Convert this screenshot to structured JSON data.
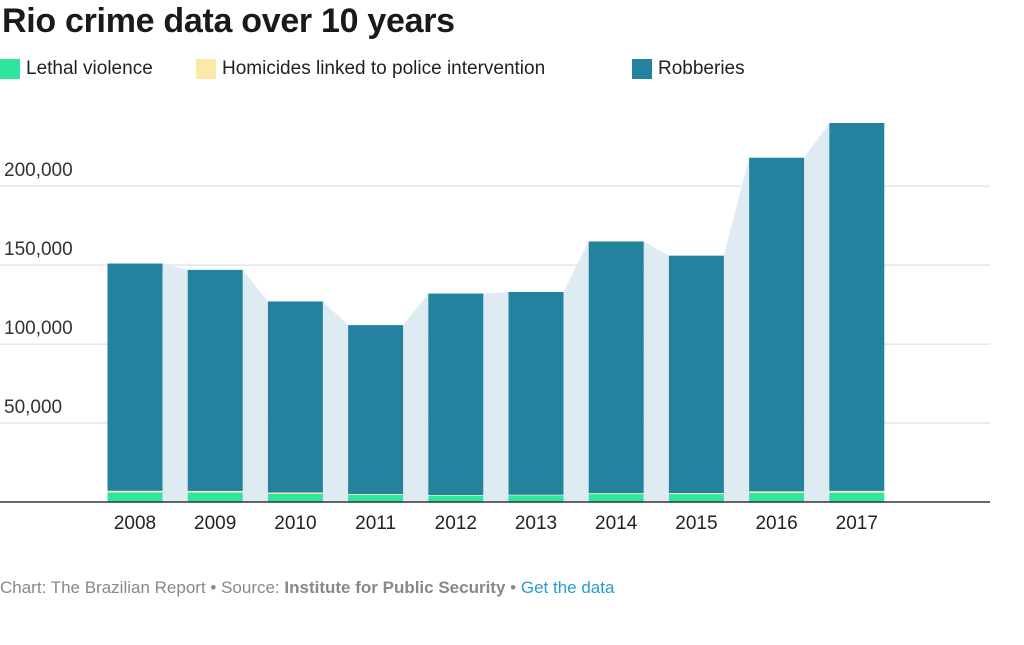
{
  "title": "Rio crime data over 10 years",
  "legend": [
    {
      "label": "Lethal violence",
      "color": "#2ee6a0"
    },
    {
      "label": "Homicides linked to police intervention",
      "color": "#fde9a6"
    },
    {
      "label": "Robberies",
      "color": "#25829f"
    }
  ],
  "footer": {
    "credit": "Chart: The Brazilian Report • Source: ",
    "source": "Institute for Public Security",
    "separator": " • ",
    "link": "Get the data"
  },
  "chart_data": {
    "type": "bar",
    "stacked": true,
    "categories": [
      "2008",
      "2009",
      "2010",
      "2011",
      "2012",
      "2013",
      "2014",
      "2015",
      "2016",
      "2017"
    ],
    "series": [
      {
        "name": "Lethal violence",
        "color": "#2ee6a0",
        "values": [
          6000,
          6000,
          5200,
          4500,
          4000,
          4200,
          5000,
          5000,
          5800,
          5900
        ]
      },
      {
        "name": "Homicides linked to police intervention",
        "color": "#fde9a6",
        "values": [
          1100,
          1000,
          800,
          500,
          400,
          400,
          580,
          650,
          920,
          1120
        ]
      },
      {
        "name": "Robberies",
        "color": "#25829f",
        "values": [
          143900,
          140000,
          121000,
          107000,
          127600,
          128400,
          159400,
          150350,
          211280,
          232980
        ]
      }
    ],
    "ylim": [
      0,
      240000
    ],
    "yticks": [
      50000,
      100000,
      150000,
      200000
    ],
    "ytick_labels": [
      "50,000",
      "100,000",
      "150,000",
      "200,000"
    ],
    "grid": true,
    "legend_position": "top",
    "connector_color": "#deebf2",
    "xlabel": "",
    "ylabel": ""
  }
}
